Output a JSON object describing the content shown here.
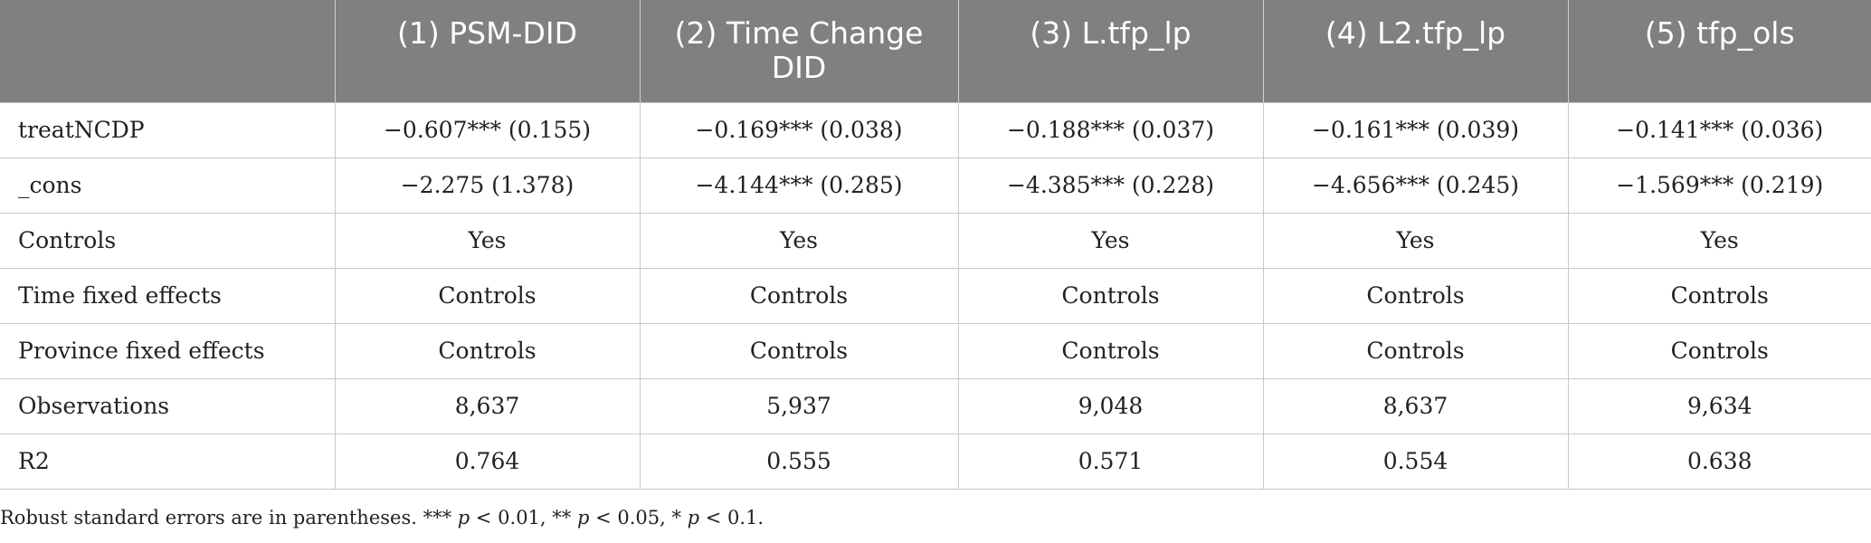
{
  "table": {
    "headers": [
      "",
      "(1) PSM-DID",
      "(2) Time Change DID",
      "(3) L.tfp_lp",
      "(4) L2.tfp_lp",
      "(5) tfp_ols"
    ],
    "rows": [
      [
        "treatNCDP",
        "−0.607*** (0.155)",
        "−0.169*** (0.038)",
        "−0.188*** (0.037)",
        "−0.161*** (0.039)",
        "−0.141*** (0.036)"
      ],
      [
        "_cons",
        "−2.275 (1.378)",
        "−4.144*** (0.285)",
        "−4.385*** (0.228)",
        "−4.656*** (0.245)",
        "−1.569*** (0.219)"
      ],
      [
        "Controls",
        "Yes",
        "Yes",
        "Yes",
        "Yes",
        "Yes"
      ],
      [
        "Time fixed effects",
        "Controls",
        "Controls",
        "Controls",
        "Controls",
        "Controls"
      ],
      [
        "Province fixed effects",
        "Controls",
        "Controls",
        "Controls",
        "Controls",
        "Controls"
      ],
      [
        "Observations",
        "8,637",
        "5,937",
        "9,048",
        "8,637",
        "9,634"
      ],
      [
        "R2",
        "0.764",
        "0.555",
        "0.571",
        "0.554",
        "0.638"
      ]
    ]
  },
  "footnote": {
    "part1": "Robust standard errors are in parentheses. *** ",
    "p1": "p",
    "part2": " < 0.01, ** ",
    "p2": "p",
    "part3": " < 0.05, * ",
    "p3": "p",
    "part4": " < 0.1."
  }
}
